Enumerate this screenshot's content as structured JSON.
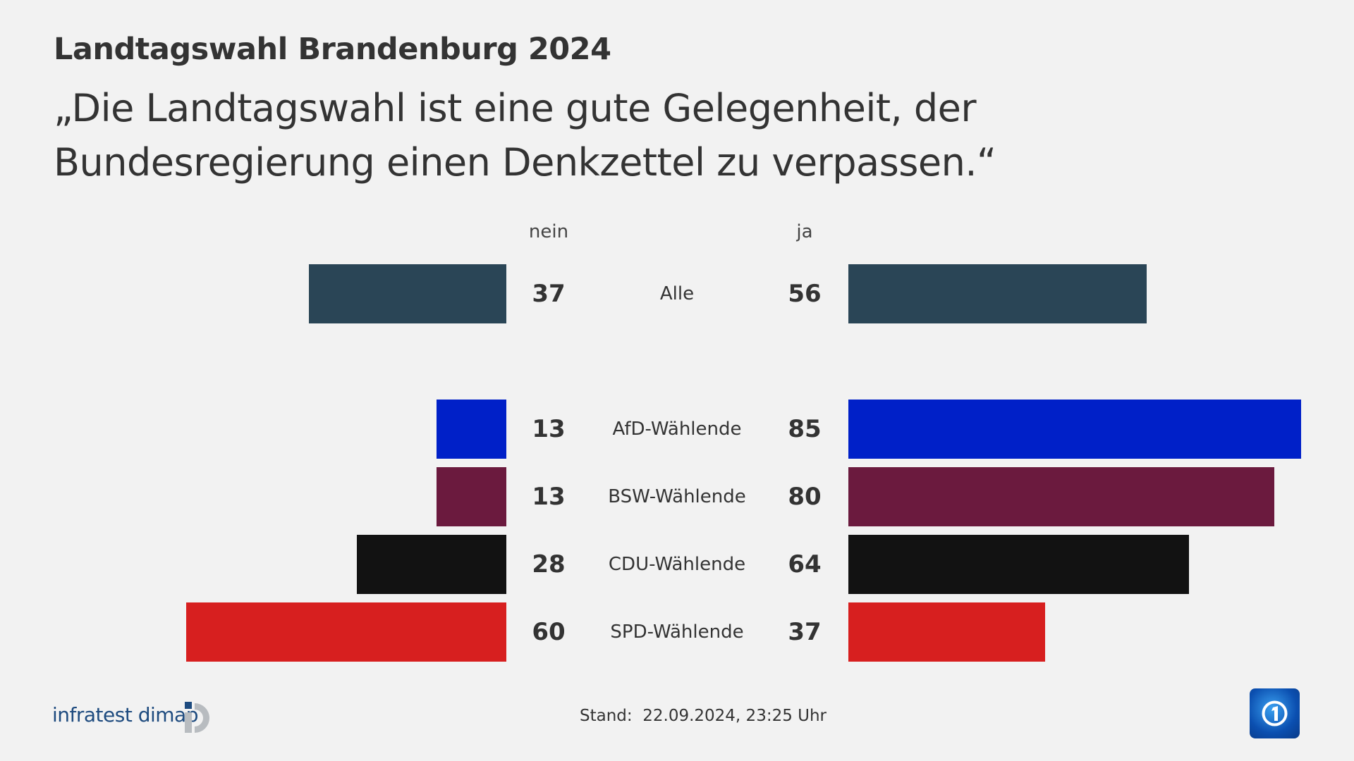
{
  "header": {
    "title": "Landtagswahl Brandenburg 2024",
    "subtitle": "„Die Landtagswahl ist eine gute Gelegenheit, der Bundesregierung einen Denkzettel zu verpassen.“"
  },
  "chart_data": {
    "type": "bar",
    "orientation": "horizontal-diverging",
    "column_headers": {
      "left": "nein",
      "right": "ja"
    },
    "categories": [
      "Alle",
      "AfD-Wählende",
      "BSW-Wählende",
      "CDU-Wählende",
      "SPD-Wählende"
    ],
    "series": [
      {
        "name": "nein",
        "values": [
          37,
          13,
          13,
          28,
          60
        ]
      },
      {
        "name": "ja",
        "values": [
          56,
          85,
          80,
          64,
          37
        ]
      }
    ],
    "colors": [
      "#2a4556",
      "#0020c8",
      "#6b1a3e",
      "#121212",
      "#d71f1f"
    ],
    "grid": false
  },
  "footer": {
    "source": "infratest dimap",
    "stand": "Stand:  22.09.2024, 23:25 Uhr",
    "logo_right": "ARD Das Erste logo"
  }
}
